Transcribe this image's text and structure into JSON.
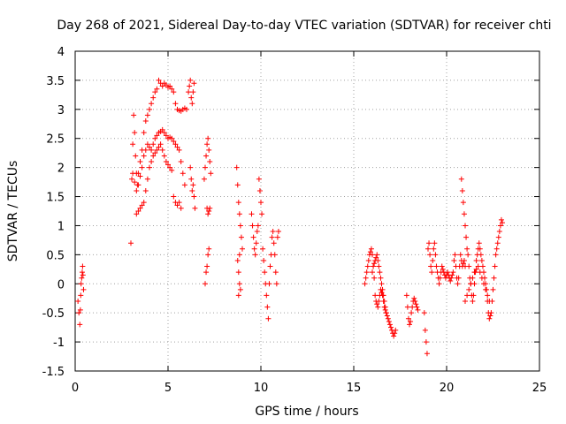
{
  "chart_data": {
    "type": "scatter",
    "title": "Day 268 of 2021, Sidereal Day-to-day VTEC variation (SDTVAR) for receiver chti",
    "xlabel": "GPS time / hours",
    "ylabel": "SDTVAR / TECUs",
    "xlim": [
      0,
      25
    ],
    "ylim": [
      -1.5,
      4
    ],
    "xticks": [
      0,
      5,
      10,
      15,
      20,
      25
    ],
    "yticks": [
      -1.5,
      -1,
      -0.5,
      0,
      0.5,
      1,
      1.5,
      2,
      2.5,
      3,
      3.5,
      4
    ],
    "grid": true,
    "marker": "+",
    "color": "#ff0000",
    "series": [
      {
        "name": "segment-1",
        "x": [
          0.15,
          0.2,
          0.25,
          0.28,
          0.3,
          0.32,
          0.35,
          0.38,
          0.4,
          0.42,
          0.45
        ],
        "y": [
          -0.3,
          -0.5,
          -0.7,
          -0.45,
          -0.2,
          0.0,
          0.1,
          0.2,
          0.3,
          0.15,
          -0.1
        ]
      },
      {
        "name": "segment-2",
        "x": [
          3.0,
          3.05,
          3.1,
          3.15,
          3.2,
          3.25,
          3.3,
          3.35,
          3.4,
          3.5,
          3.6,
          3.7,
          3.8,
          3.9,
          4.0,
          4.1,
          4.2,
          4.3,
          4.4,
          4.5,
          4.6,
          4.7,
          4.8,
          4.9,
          5.0,
          5.1,
          5.2,
          5.3,
          5.4,
          5.5,
          5.6,
          5.7,
          5.8,
          5.9,
          6.0
        ],
        "y": [
          0.7,
          1.8,
          2.4,
          2.9,
          2.6,
          2.2,
          1.9,
          1.7,
          1.9,
          2.1,
          2.3,
          2.6,
          2.8,
          2.9,
          3.0,
          3.1,
          3.2,
          3.3,
          3.35,
          3.5,
          3.45,
          3.4,
          3.45,
          3.42,
          3.38,
          3.4,
          3.35,
          3.3,
          3.1,
          3.0,
          2.98,
          2.97,
          3.0,
          3.02,
          3.0
        ]
      },
      {
        "name": "segment-3",
        "x": [
          3.1,
          3.2,
          3.3,
          3.4,
          3.5,
          3.6,
          3.7,
          3.8,
          3.9,
          4.0,
          4.1,
          4.2,
          4.3,
          4.4,
          4.5,
          4.6,
          4.7,
          4.8,
          4.9,
          5.0,
          5.1,
          5.2,
          5.3,
          5.4,
          5.5,
          5.6,
          5.7,
          5.8,
          5.9
        ],
        "y": [
          1.9,
          1.75,
          1.6,
          1.7,
          1.85,
          2.0,
          2.2,
          2.3,
          2.4,
          2.35,
          2.3,
          2.4,
          2.5,
          2.55,
          2.6,
          2.62,
          2.65,
          2.6,
          2.55,
          2.5,
          2.52,
          2.5,
          2.45,
          2.4,
          2.35,
          2.3,
          2.1,
          1.9,
          1.7
        ]
      },
      {
        "name": "segment-4",
        "x": [
          3.3,
          3.4,
          3.5,
          3.6,
          3.7,
          3.8,
          3.9,
          4.0,
          4.1,
          4.2,
          4.3,
          4.4,
          4.5,
          4.6,
          4.7,
          4.8,
          4.9,
          5.0,
          5.1,
          5.2,
          5.3,
          5.4,
          5.5,
          5.6,
          5.7
        ],
        "y": [
          1.2,
          1.25,
          1.3,
          1.35,
          1.4,
          1.6,
          1.8,
          2.0,
          2.1,
          2.2,
          2.25,
          2.3,
          2.35,
          2.4,
          2.3,
          2.2,
          2.1,
          2.05,
          2.0,
          1.95,
          1.5,
          1.4,
          1.35,
          1.4,
          1.3
        ]
      },
      {
        "name": "segment-5",
        "x": [
          6.1,
          6.15,
          6.2,
          6.25,
          6.3,
          6.35,
          6.4,
          6.2,
          6.25,
          6.3,
          6.35,
          6.4,
          6.45
        ],
        "y": [
          3.3,
          3.4,
          3.5,
          3.2,
          3.1,
          3.3,
          3.45,
          2.0,
          1.8,
          1.6,
          1.7,
          1.5,
          1.3
        ]
      },
      {
        "name": "segment-6",
        "x": [
          6.95,
          7.0,
          7.05,
          7.1,
          7.15,
          7.2,
          7.25,
          7.3,
          7.1,
          7.15,
          7.2,
          7.25,
          7.0,
          7.05,
          7.1,
          7.15,
          7.2
        ],
        "y": [
          1.8,
          2.0,
          2.2,
          2.4,
          2.5,
          2.3,
          2.1,
          1.9,
          1.3,
          1.2,
          1.25,
          1.3,
          0.0,
          0.2,
          0.3,
          0.5,
          0.6
        ]
      },
      {
        "name": "segment-7",
        "x": [
          8.7,
          8.75,
          8.8,
          8.85,
          8.9,
          8.95,
          9.0,
          8.75,
          8.8,
          8.85,
          8.9,
          8.8,
          8.85
        ],
        "y": [
          2.0,
          1.7,
          1.4,
          1.2,
          1.0,
          0.8,
          0.6,
          0.4,
          0.2,
          0.0,
          -0.1,
          -0.2,
          0.5
        ]
      },
      {
        "name": "segment-8",
        "x": [
          9.5,
          9.55,
          9.6,
          9.65,
          9.7,
          9.75,
          9.8,
          9.85,
          9.9,
          9.95,
          10.0,
          10.05,
          10.1,
          10.15,
          10.2,
          10.25,
          10.3,
          10.35,
          10.4,
          10.45,
          10.5,
          10.55,
          10.6,
          10.65,
          10.7,
          10.75,
          10.8,
          10.85,
          10.9,
          10.95
        ],
        "y": [
          1.2,
          1.0,
          0.8,
          0.6,
          0.5,
          0.7,
          0.9,
          1.0,
          1.8,
          1.6,
          1.4,
          1.2,
          0.6,
          0.4,
          0.2,
          0.0,
          -0.2,
          -0.4,
          -0.6,
          0.0,
          0.3,
          0.5,
          0.8,
          0.9,
          0.7,
          0.5,
          0.2,
          0.0,
          0.8,
          0.9
        ]
      },
      {
        "name": "segment-9",
        "x": [
          15.6,
          15.65,
          15.7,
          15.75,
          15.8,
          15.85,
          15.9,
          15.95,
          16.0,
          16.05,
          16.1,
          16.15,
          16.2,
          16.25,
          16.3,
          16.35,
          16.4,
          16.45,
          16.5,
          16.55,
          16.6,
          16.65,
          16.7,
          16.75,
          16.8,
          16.85,
          16.9,
          16.95,
          17.0,
          17.05,
          17.1,
          17.15,
          17.2,
          17.25
        ],
        "y": [
          0.0,
          0.1,
          0.2,
          0.3,
          0.4,
          0.5,
          0.55,
          0.6,
          0.5,
          0.3,
          0.1,
          -0.2,
          -0.3,
          -0.35,
          -0.4,
          -0.3,
          -0.2,
          -0.1,
          -0.15,
          -0.2,
          -0.3,
          -0.4,
          -0.45,
          -0.5,
          -0.55,
          -0.6,
          -0.65,
          -0.7,
          -0.75,
          -0.8,
          -0.85,
          -0.9,
          -0.85,
          -0.8
        ]
      },
      {
        "name": "segment-10",
        "x": [
          16.0,
          16.05,
          16.1,
          16.15,
          16.2,
          16.25,
          16.3,
          16.35,
          16.4,
          16.45,
          16.5,
          16.55,
          16.6,
          16.65,
          16.7,
          16.75
        ],
        "y": [
          0.2,
          0.3,
          0.35,
          0.4,
          0.45,
          0.5,
          0.4,
          0.3,
          0.2,
          0.1,
          0.0,
          -0.1,
          -0.2,
          -0.3,
          -0.4,
          -0.5
        ]
      },
      {
        "name": "segment-11",
        "x": [
          17.85,
          17.9,
          17.95,
          18.0,
          18.05,
          18.1,
          18.15,
          18.2,
          18.25,
          18.3,
          18.35,
          18.4,
          18.45
        ],
        "y": [
          -0.2,
          -0.4,
          -0.6,
          -0.7,
          -0.65,
          -0.5,
          -0.4,
          -0.3,
          -0.25,
          -0.3,
          -0.35,
          -0.4,
          -0.45
        ]
      },
      {
        "name": "segment-12",
        "x": [
          18.8,
          18.85,
          18.9,
          18.95,
          19.0,
          19.05,
          19.1,
          19.15,
          19.2,
          19.25,
          19.3,
          19.35,
          19.4,
          19.45,
          19.5,
          19.55,
          19.6,
          19.65,
          19.7,
          19.75,
          19.8,
          19.85,
          19.9,
          19.95,
          20.0,
          20.05,
          20.1,
          20.15,
          20.2,
          20.25,
          20.3,
          20.35,
          20.4,
          20.45,
          20.5,
          20.55,
          20.6,
          20.65,
          20.7,
          20.75,
          20.8,
          20.85,
          20.9,
          20.95,
          21.0
        ],
        "y": [
          -0.5,
          -0.8,
          -1.0,
          -1.2,
          0.6,
          0.7,
          0.5,
          0.3,
          0.2,
          0.4,
          0.6,
          0.7,
          0.5,
          0.3,
          0.2,
          0.1,
          0.0,
          0.1,
          0.2,
          0.3,
          0.25,
          0.2,
          0.15,
          0.1,
          0.15,
          0.2,
          0.15,
          0.1,
          0.05,
          0.1,
          0.15,
          0.2,
          0.4,
          0.5,
          0.3,
          0.1,
          0.0,
          0.1,
          0.3,
          0.5,
          0.4,
          0.3,
          0.35,
          0.4,
          0.3
        ]
      },
      {
        "name": "segment-13",
        "x": [
          20.8,
          20.85,
          20.9,
          20.95,
          21.0,
          21.05,
          21.1,
          21.15,
          21.2,
          21.25,
          21.3,
          21.35,
          21.4,
          21.45,
          21.5,
          21.55,
          21.6,
          21.65,
          21.7,
          21.75,
          21.8,
          21.85,
          21.9,
          21.95,
          22.0,
          22.05,
          22.1,
          22.15,
          22.2,
          22.25,
          22.3,
          22.35,
          22.4,
          22.45,
          22.5,
          22.55,
          22.6,
          22.65,
          22.7,
          22.75,
          22.8,
          22.85,
          22.9,
          22.95,
          23.0
        ],
        "y": [
          1.8,
          1.6,
          1.4,
          1.2,
          1.0,
          0.8,
          0.6,
          0.5,
          0.3,
          0.1,
          0.0,
          -0.2,
          -0.3,
          -0.2,
          0.0,
          0.2,
          0.4,
          0.5,
          0.6,
          0.7,
          0.6,
          0.5,
          0.4,
          0.3,
          0.2,
          0.1,
          0.0,
          -0.1,
          -0.3,
          -0.5,
          -0.6,
          -0.55,
          -0.5,
          -0.3,
          -0.1,
          0.1,
          0.3,
          0.5,
          0.6,
          0.7,
          0.8,
          0.9,
          1.0,
          1.1,
          1.05
        ]
      },
      {
        "name": "segment-14",
        "x": [
          21.0,
          21.1,
          21.2,
          21.3,
          21.4,
          21.5,
          21.6,
          21.7,
          21.8,
          21.9,
          22.0,
          22.1,
          22.2,
          22.3
        ],
        "y": [
          -0.3,
          -0.2,
          -0.1,
          0.0,
          0.1,
          0.2,
          0.25,
          0.3,
          0.2,
          0.1,
          0.0,
          -0.1,
          -0.2,
          -0.3
        ]
      }
    ]
  }
}
